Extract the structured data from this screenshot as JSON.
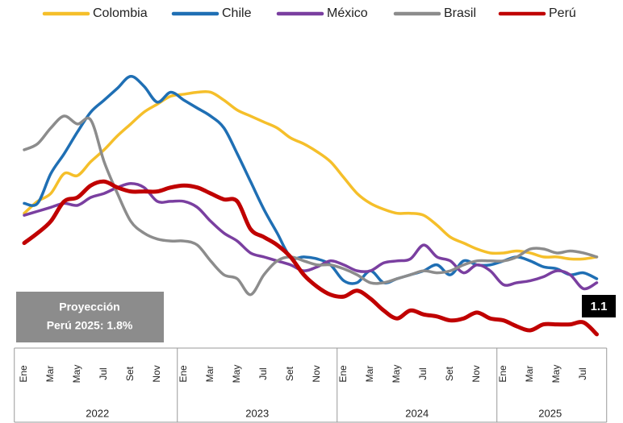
{
  "chart_data": {
    "type": "line",
    "categories": [
      "Ene",
      null,
      "Mar",
      null,
      "May",
      null,
      "Jul",
      null,
      "Set",
      null,
      "Nov",
      null,
      "Ene",
      null,
      "Mar",
      null,
      "May",
      null,
      "Jul",
      null,
      "Set",
      null,
      "Nov",
      null,
      "Ene",
      null,
      "Mar",
      null,
      "May",
      null,
      "Jul",
      null,
      "Set",
      null,
      "Nov",
      null,
      "Ene",
      null,
      "Mar",
      null,
      "May",
      null,
      "Jul",
      null
    ],
    "years": [
      "2022",
      "2023",
      "2024",
      "2025"
    ],
    "ylim": [
      0.4,
      16
    ],
    "series": [
      {
        "name": "Colombia",
        "color": "#f5bf2a",
        "values": [
          7.2,
          7.8,
          8.2,
          9.2,
          9.1,
          9.8,
          10.4,
          11.1,
          11.7,
          12.3,
          12.7,
          13.1,
          13.2,
          13.3,
          13.3,
          12.9,
          12.4,
          12.1,
          11.8,
          11.5,
          11.0,
          10.7,
          10.3,
          9.8,
          9.0,
          8.2,
          7.7,
          7.4,
          7.2,
          7.2,
          7.1,
          6.6,
          6.0,
          5.7,
          5.4,
          5.2,
          5.2,
          5.3,
          5.2,
          5.0,
          5.0,
          4.9,
          4.9,
          5.0
        ]
      },
      {
        "name": "Chile",
        "color": "#1f6fb4",
        "values": [
          7.7,
          7.7,
          9.2,
          10.2,
          11.3,
          12.3,
          12.9,
          13.5,
          14.1,
          13.6,
          12.8,
          13.3,
          12.9,
          12.5,
          12.1,
          11.5,
          10.2,
          8.8,
          7.4,
          6.2,
          5.0,
          5.0,
          4.9,
          4.6,
          3.8,
          3.7,
          4.3,
          3.7,
          3.9,
          4.1,
          4.3,
          4.6,
          4.1,
          4.8,
          4.6,
          4.6,
          4.8,
          5.0,
          4.8,
          4.5,
          4.4,
          4.1,
          4.2,
          3.9
        ]
      },
      {
        "name": "México",
        "color": "#7a3fa0",
        "values": [
          7.1,
          7.3,
          7.5,
          7.7,
          7.6,
          8.0,
          8.2,
          8.5,
          8.7,
          8.5,
          7.8,
          7.8,
          7.8,
          7.5,
          6.8,
          6.2,
          5.8,
          5.2,
          5.0,
          4.8,
          4.6,
          4.3,
          4.5,
          4.8,
          4.6,
          4.3,
          4.3,
          4.7,
          4.8,
          4.9,
          5.6,
          5.0,
          4.8,
          4.2,
          4.6,
          4.3,
          3.6,
          3.7,
          3.8,
          4.0,
          4.3,
          4.1,
          3.4,
          3.7
        ]
      },
      {
        "name": "Brasil",
        "color": "#8c8c8c",
        "values": [
          10.4,
          10.7,
          11.5,
          12.1,
          11.7,
          11.9,
          9.8,
          8.2,
          6.8,
          6.2,
          5.9,
          5.8,
          5.8,
          5.6,
          4.8,
          4.1,
          3.9,
          3.1,
          4.1,
          4.8,
          5.0,
          4.8,
          4.6,
          4.6,
          4.4,
          4.1,
          3.7,
          3.7,
          3.9,
          4.1,
          4.3,
          4.2,
          4.3,
          4.6,
          4.8,
          4.8,
          4.8,
          5.0,
          5.4,
          5.4,
          5.2,
          5.3,
          5.2,
          5.0
        ]
      },
      {
        "name": "Perú",
        "color": "#c00000",
        "values": [
          5.7,
          6.2,
          6.8,
          7.8,
          8.0,
          8.6,
          8.8,
          8.5,
          8.3,
          8.3,
          8.3,
          8.5,
          8.6,
          8.5,
          8.2,
          7.9,
          7.8,
          6.4,
          6.0,
          5.6,
          5.0,
          4.1,
          3.5,
          3.1,
          3.0,
          3.3,
          2.9,
          2.3,
          1.9,
          2.3,
          2.1,
          2.0,
          1.8,
          1.9,
          2.2,
          1.9,
          1.8,
          1.5,
          1.3,
          1.6,
          1.6,
          1.6,
          1.7,
          1.1
        ]
      }
    ],
    "annotation": [
      "Proyección",
      "Perú 2025: 1.8%"
    ]
  }
}
